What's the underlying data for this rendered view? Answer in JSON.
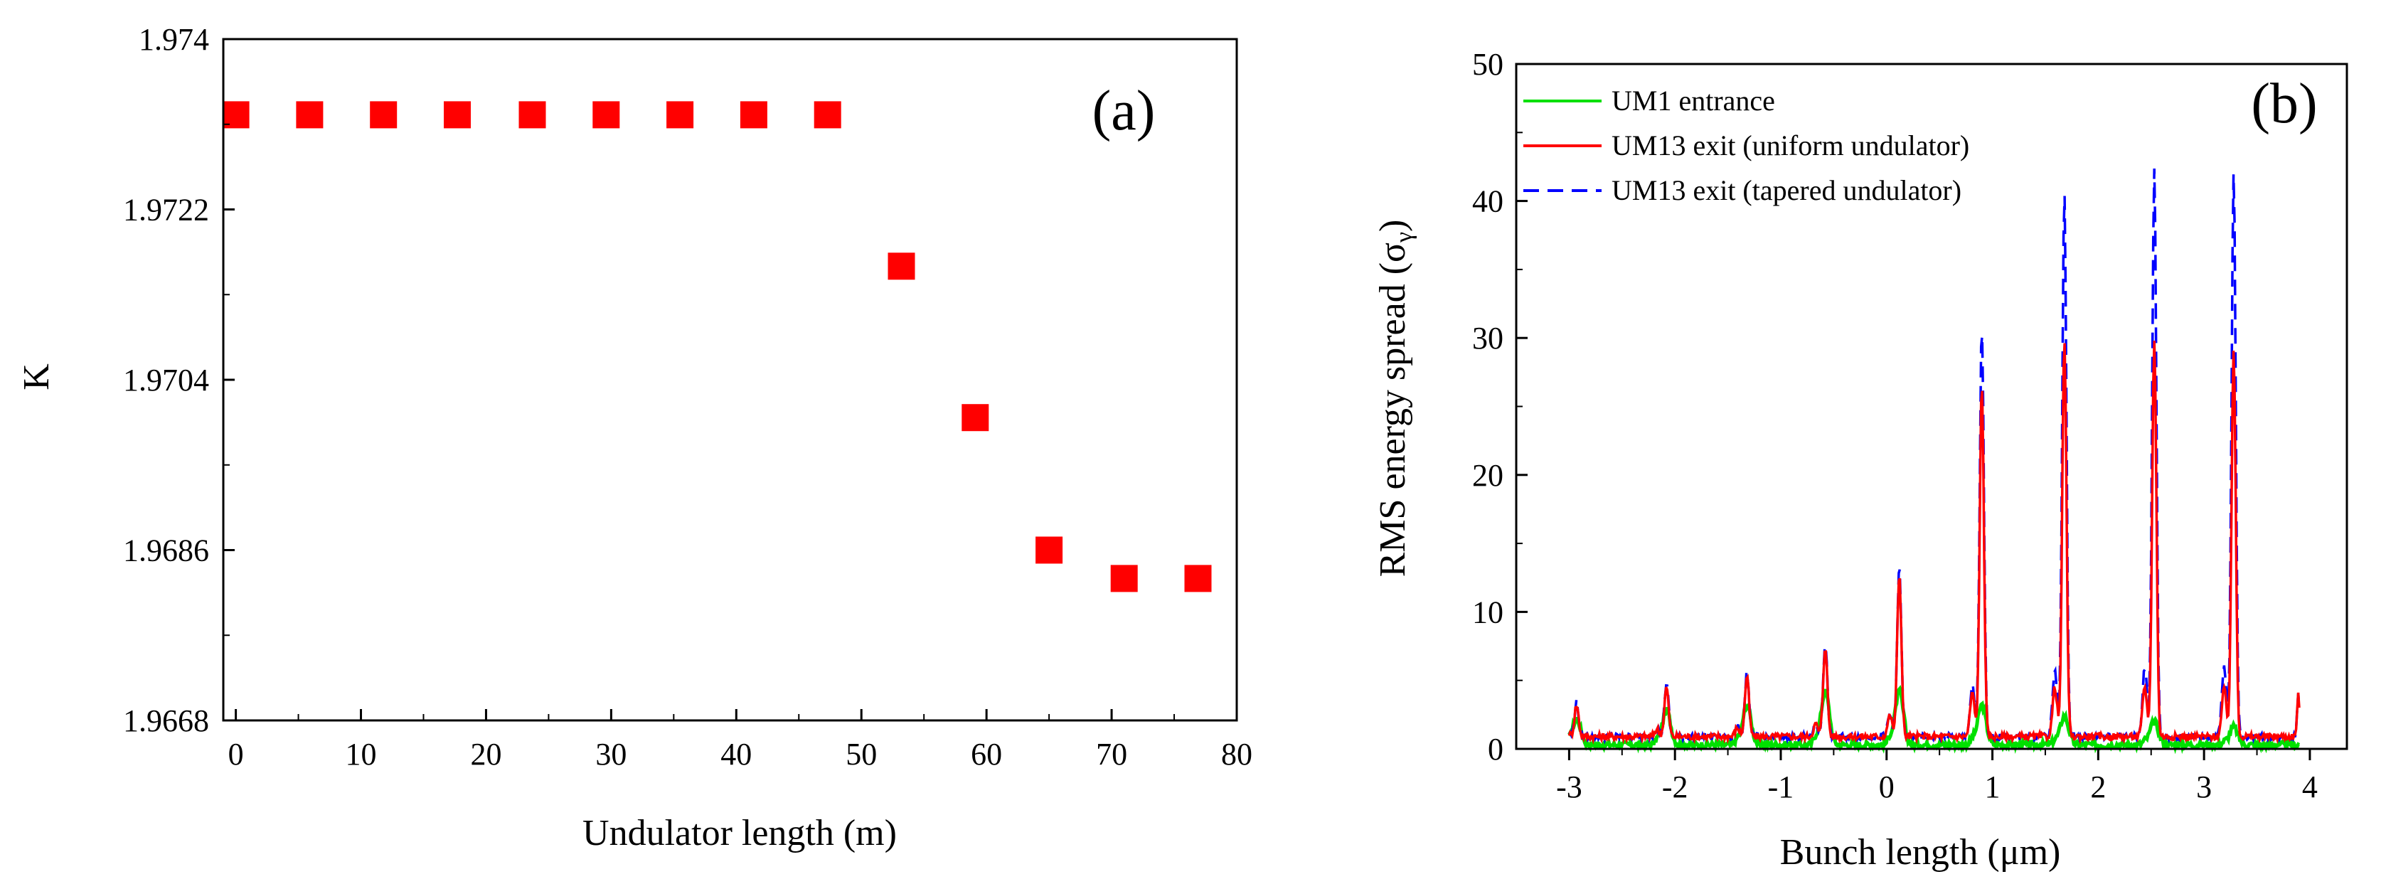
{
  "chart_data": [
    {
      "type": "scatter",
      "panel_label": "(a)",
      "xlabel": "Undulator length (m)",
      "ylabel": "K",
      "xlim": [
        -1,
        80
      ],
      "ylim": [
        1.9668,
        1.974
      ],
      "xticks": [
        0,
        10,
        20,
        30,
        40,
        50,
        60,
        70,
        80
      ],
      "xtick_labels": [
        "0",
        "10",
        "20",
        "30",
        "40",
        "50",
        "60",
        "70",
        "80"
      ],
      "yticks": [
        1.9668,
        1.9686,
        1.9704,
        1.9722,
        1.974
      ],
      "ytick_labels": [
        "1.9668",
        "1.9686",
        "1.9704",
        "1.9722",
        "1.974"
      ],
      "marker_color": "#ff0000",
      "x": [
        0,
        5.9,
        11.8,
        17.7,
        23.7,
        29.6,
        35.5,
        41.4,
        47.3,
        53.2,
        59.1,
        65.0,
        71.0,
        76.9
      ],
      "y": [
        1.9732,
        1.9732,
        1.9732,
        1.9732,
        1.9732,
        1.9732,
        1.9732,
        1.9732,
        1.9732,
        1.9716,
        1.97,
        1.9686,
        1.9683,
        1.9683
      ]
    },
    {
      "type": "line",
      "panel_label": "(b)",
      "xlabel": "Bunch length (μm)",
      "ylabel": "RMS energy spread (σ",
      "ylabel_subscript": "γ",
      "ylabel_close": ")",
      "xlim": [
        -3.5,
        4.35
      ],
      "ylim": [
        0,
        50
      ],
      "xticks": [
        -3,
        -2,
        -1,
        0,
        1,
        2,
        3,
        4
      ],
      "xtick_labels": [
        "-3",
        "-2",
        "-1",
        "0",
        "1",
        "2",
        "3",
        "4"
      ],
      "yticks": [
        0,
        10,
        20,
        30,
        40,
        50
      ],
      "ytick_labels": [
        "0",
        "10",
        "20",
        "30",
        "40",
        "50"
      ],
      "legend_position": "top-left",
      "peak_centers": [
        -2.93,
        -2.08,
        -1.32,
        -0.58,
        0.12,
        0.9,
        1.68,
        2.53,
        3.28
      ],
      "series": [
        {
          "name": "UM1 entrance",
          "color": "#00e000",
          "dash": "solid",
          "x_range": [
            -3.0,
            3.9
          ],
          "base": 0.3,
          "peaks": [
            2.2,
            2.8,
            3.2,
            4.2,
            4.2,
            3.2,
            2.4,
            2.0,
            1.6
          ]
        },
        {
          "name": "UM13 exit (uniform undulator)",
          "color": "#ff0000",
          "dash": "solid",
          "x_range": [
            -3.0,
            3.9
          ],
          "base": 0.9,
          "peaks": [
            3.2,
            4.5,
            5.3,
            7.5,
            12.8,
            26.5,
            30.0,
            30.0,
            29.0
          ]
        },
        {
          "name": "UM13 exit (tapered undulator)",
          "color": "#0000ff",
          "dash": "dashed",
          "x_range": [
            -3.0,
            3.9
          ],
          "base": 0.9,
          "peaks": [
            3.4,
            4.8,
            5.6,
            7.8,
            13.2,
            30.7,
            40.4,
            42.3,
            42.0
          ]
        }
      ]
    }
  ]
}
